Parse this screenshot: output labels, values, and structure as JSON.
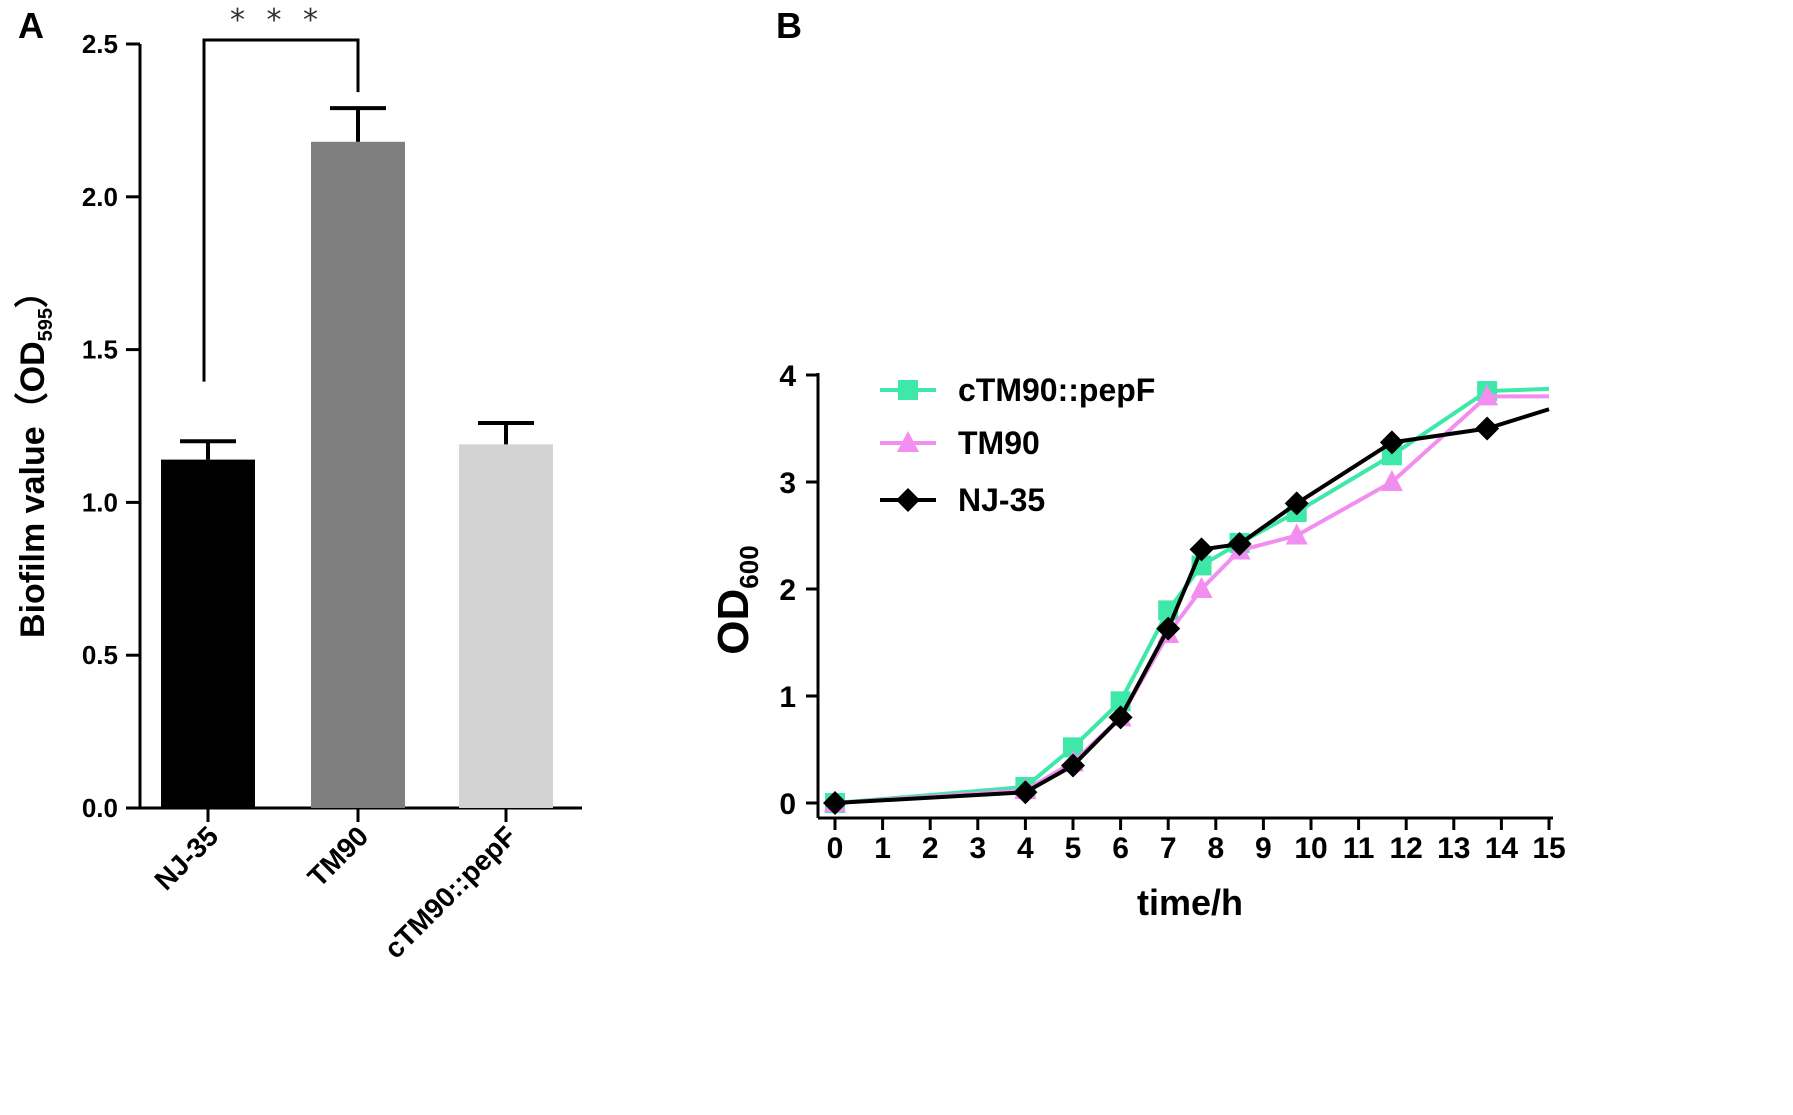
{
  "chart_data": [
    {
      "panel": "A",
      "type": "bar",
      "categories": [
        "NJ-35",
        "TM90",
        "cTM90::pepF"
      ],
      "values": [
        1.14,
        2.18,
        1.19
      ],
      "errors": [
        0.06,
        0.11,
        0.07
      ],
      "colors": [
        "#000000",
        "#7f7f7f",
        "#d3d3d3"
      ],
      "ylabel": {
        "main": "Biofilm value（OD",
        "sub": "595",
        "end": "）"
      },
      "ylim": [
        0,
        2.5
      ],
      "yticks": [
        "0.0",
        "0.5",
        "1.0",
        "1.5",
        "2.0",
        "2.5"
      ],
      "significance": {
        "between": [
          "NJ-35",
          "TM90"
        ],
        "label": "***"
      }
    },
    {
      "panel": "B",
      "type": "line",
      "xlabel": "time/h",
      "ylabel": {
        "main": "OD",
        "sub": "600"
      },
      "xlim": [
        0,
        15
      ],
      "ylim": [
        0,
        4
      ],
      "xticks": [
        "0",
        "1",
        "2",
        "3",
        "4",
        "5",
        "6",
        "7",
        "8",
        "9",
        "10",
        "11",
        "12",
        "13",
        "14",
        "15"
      ],
      "yticks": [
        "0",
        "1",
        "2",
        "3",
        "4"
      ],
      "series": [
        {
          "name": "cTM90::pepF",
          "color": "#3ee8a8",
          "marker": "square",
          "x": [
            0,
            4,
            5,
            6,
            7,
            7.7,
            8.5,
            9.7,
            11.7,
            13.7,
            15
          ],
          "y": [
            0,
            0.15,
            0.52,
            0.95,
            1.8,
            2.22,
            2.43,
            2.72,
            3.25,
            3.85,
            3.87
          ]
        },
        {
          "name": "TM90",
          "color": "#f28ef0",
          "marker": "triangle",
          "x": [
            0,
            4,
            5,
            6,
            7,
            7.7,
            8.5,
            9.7,
            11.7,
            13.7,
            15
          ],
          "y": [
            0,
            0.12,
            0.38,
            0.8,
            1.58,
            2.0,
            2.36,
            2.5,
            3.0,
            3.8,
            3.8
          ]
        },
        {
          "name": "NJ-35",
          "color": "#000000",
          "marker": "diamond",
          "x": [
            0,
            4,
            5,
            6,
            7,
            7.7,
            8.5,
            9.7,
            11.7,
            13.7,
            15
          ],
          "y": [
            0,
            0.1,
            0.35,
            0.8,
            1.63,
            2.37,
            2.42,
            2.8,
            3.37,
            3.5,
            3.68
          ]
        }
      ]
    }
  ],
  "panels": {
    "a_label": "A",
    "b_label": "B"
  }
}
